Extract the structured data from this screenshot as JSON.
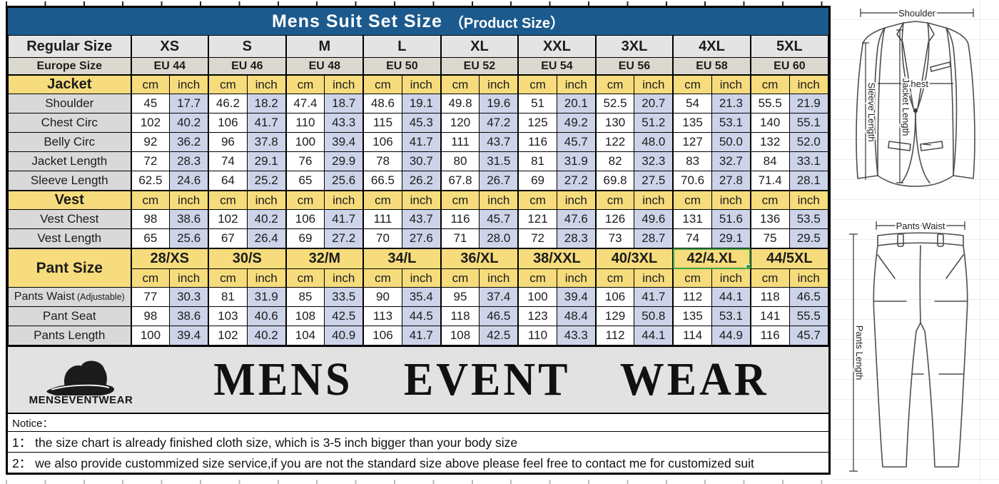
{
  "title": {
    "main": "Mens Suit Set Size",
    "sub": "（Product Size）"
  },
  "colors": {
    "title_bg": "#1c5a8d",
    "header_bg": "#e4e4e4",
    "europe_bg": "#dbd9cf",
    "section_yellow": "#f6dc7d",
    "label_gray": "#d9d9d9",
    "inch_blue": "#cdd4e9",
    "selection_green": "#3ea04a",
    "logo_bg": "#e2e2e2",
    "border": "#000000"
  },
  "table": {
    "regular_label": "Regular Size",
    "sizes": [
      "XS",
      "S",
      "M",
      "L",
      "XL",
      "XXL",
      "3XL",
      "4XL",
      "5XL"
    ],
    "europe_label": "Europe Size",
    "europe": [
      "EU 44",
      "EU 46",
      "EU 48",
      "EU 50",
      "EU 52",
      "EU 54",
      "EU 56",
      "EU 58",
      "EU 60"
    ],
    "units": {
      "cm": "cm",
      "inch": "inch"
    },
    "sections": [
      {
        "name": "Jacket",
        "rows": [
          {
            "label": "Shoulder",
            "cm": [
              "45",
              "46.2",
              "47.4",
              "48.6",
              "49.8",
              "51",
              "52.5",
              "54",
              "55.5"
            ],
            "inch": [
              "17.7",
              "18.2",
              "18.7",
              "19.1",
              "19.6",
              "20.1",
              "20.7",
              "21.3",
              "21.9"
            ]
          },
          {
            "label": "Chest Circ",
            "cm": [
              "102",
              "106",
              "110",
              "115",
              "120",
              "125",
              "130",
              "135",
              "140"
            ],
            "inch": [
              "40.2",
              "41.7",
              "43.3",
              "45.3",
              "47.2",
              "49.2",
              "51.2",
              "53.1",
              "55.1"
            ]
          },
          {
            "label": "Belly Circ",
            "cm": [
              "92",
              "96",
              "100",
              "106",
              "111",
              "116",
              "122",
              "127",
              "132"
            ],
            "inch": [
              "36.2",
              "37.8",
              "39.4",
              "41.7",
              "43.7",
              "45.7",
              "48.0",
              "50.0",
              "52.0"
            ]
          },
          {
            "label": "Jacket Length",
            "cm": [
              "72",
              "74",
              "76",
              "78",
              "80",
              "81",
              "82",
              "83",
              "84"
            ],
            "inch": [
              "28.3",
              "29.1",
              "29.9",
              "30.7",
              "31.5",
              "31.9",
              "32.3",
              "32.7",
              "33.1"
            ]
          },
          {
            "label": "Sleeve Length",
            "cm": [
              "62.5",
              "64",
              "65",
              "66.5",
              "67.8",
              "69",
              "69.8",
              "70.6",
              "71.4"
            ],
            "inch": [
              "24.6",
              "25.2",
              "25.6",
              "26.2",
              "26.7",
              "27.2",
              "27.5",
              "27.8",
              "28.1"
            ]
          }
        ]
      },
      {
        "name": "Vest",
        "rows": [
          {
            "label": "Vest Chest",
            "cm": [
              "98",
              "102",
              "106",
              "111",
              "116",
              "121",
              "126",
              "131",
              "136"
            ],
            "inch": [
              "38.6",
              "40.2",
              "41.7",
              "43.7",
              "45.7",
              "47.6",
              "49.6",
              "51.6",
              "53.5"
            ]
          },
          {
            "label": "Vest Length",
            "cm": [
              "65",
              "67",
              "69",
              "70",
              "71",
              "72",
              "73",
              "74",
              "75"
            ],
            "inch": [
              "25.6",
              "26.4",
              "27.2",
              "27.6",
              "28.0",
              "28.3",
              "28.7",
              "29.1",
              "29.5"
            ]
          }
        ]
      }
    ],
    "pant": {
      "name": "Pant Size",
      "sizes": [
        "28/XS",
        "30/S",
        "32/M",
        "34/L",
        "36/XL",
        "38/XXL",
        "40/3XL",
        "42/4.XL",
        "44/5XL"
      ],
      "selected_index": 7,
      "rows": [
        {
          "label": "Pants Waist",
          "note": "(Adjustable)",
          "cm": [
            "77",
            "81",
            "85",
            "90",
            "95",
            "100",
            "106",
            "112",
            "118"
          ],
          "inch": [
            "30.3",
            "31.9",
            "33.5",
            "35.4",
            "37.4",
            "39.4",
            "41.7",
            "44.1",
            "46.5"
          ]
        },
        {
          "label": "Pant Seat",
          "note": "",
          "cm": [
            "98",
            "103",
            "108",
            "113",
            "118",
            "123",
            "129",
            "135",
            "141"
          ],
          "inch": [
            "38.6",
            "40.6",
            "42.5",
            "44.5",
            "46.5",
            "48.4",
            "50.8",
            "53.1",
            "55.5"
          ]
        },
        {
          "label": "Pants Length",
          "note": "",
          "cm": [
            "100",
            "102",
            "104",
            "106",
            "108",
            "110",
            "112",
            "114",
            "116"
          ],
          "inch": [
            "39.4",
            "40.2",
            "40.9",
            "41.7",
            "42.5",
            "43.3",
            "44.1",
            "44.9",
            "45.7"
          ]
        }
      ]
    }
  },
  "logo": {
    "brand_small": "MENSEVENTWEAR",
    "brand_large": "MENS EVENT WEAR"
  },
  "notices": {
    "title": "Notice：",
    "line1": "1：  the size chart is already finished cloth size, which is 3-5 inch bigger than your body size",
    "line2": "2：  we also provide custommized size service,if you are not the standard size above please feel free to contact me for customized suit"
  },
  "drawings": {
    "shoulder": "Shoulder",
    "chest": "Chest",
    "jacket_length": "Jacket Length",
    "sleeve_length": "Sleeve Length",
    "pants_waist": "Pants Waist",
    "pants_length": "Pants Length"
  }
}
